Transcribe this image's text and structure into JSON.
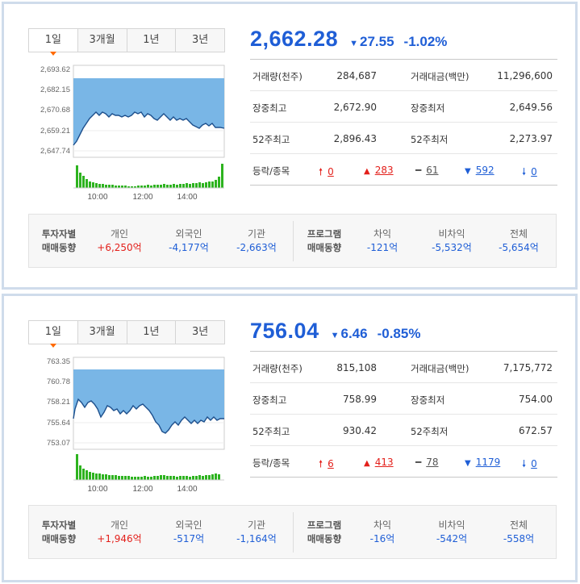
{
  "panels": [
    {
      "tabs": [
        "1일",
        "3개월",
        "1년",
        "3년"
      ],
      "chart": {
        "y_ticks": [
          "2,693.62",
          "2,682.15",
          "2,670.68",
          "2,659.21",
          "2,647.74"
        ],
        "x_ticks": [
          "10:00",
          "12:00",
          "14:00"
        ]
      },
      "price": "2,662.28",
      "change": "27.55",
      "change_symbol": "▼",
      "rate": "-1.02%",
      "stats": [
        {
          "k1": "거래량(천주)",
          "v1": "284,687",
          "k2": "거래대금(백만)",
          "v2": "11,296,600"
        },
        {
          "k1": "장중최고",
          "v1": "2,672.90",
          "k2": "장중최저",
          "v2": "2,649.56"
        },
        {
          "k1": "52주최고",
          "v1": "2,896.43",
          "k2": "52주최저",
          "v2": "2,273.97"
        }
      ],
      "updown": {
        "label": "등락/종목",
        "upper_limit": "0",
        "rise": "283",
        "flat": "61",
        "fall": "592",
        "lower_limit": "0"
      },
      "investor_flow": {
        "head": "투자자별 매매동향",
        "items": [
          {
            "label": "개인",
            "value": "+6,250억",
            "color": "red"
          },
          {
            "label": "외국인",
            "value": "-4,177억",
            "color": "blue"
          },
          {
            "label": "기관",
            "value": "-2,663억",
            "color": "blue"
          }
        ]
      },
      "program_flow": {
        "head": "프로그램 매매동향",
        "items": [
          {
            "label": "차익",
            "value": "-121억",
            "color": "blue"
          },
          {
            "label": "비차익",
            "value": "-5,532억",
            "color": "blue"
          },
          {
            "label": "전체",
            "value": "-5,654억",
            "color": "blue"
          }
        ]
      }
    },
    {
      "tabs": [
        "1일",
        "3개월",
        "1년",
        "3년"
      ],
      "chart": {
        "y_ticks": [
          "763.35",
          "760.78",
          "758.21",
          "755.64",
          "753.07"
        ],
        "x_ticks": [
          "10:00",
          "12:00",
          "14:00"
        ]
      },
      "price": "756.04",
      "change": "6.46",
      "change_symbol": "▼",
      "rate": "-0.85%",
      "stats": [
        {
          "k1": "거래량(천주)",
          "v1": "815,108",
          "k2": "거래대금(백만)",
          "v2": "7,175,772"
        },
        {
          "k1": "장중최고",
          "v1": "758.99",
          "k2": "장중최저",
          "v2": "754.00"
        },
        {
          "k1": "52주최고",
          "v1": "930.42",
          "k2": "52주최저",
          "v2": "672.57"
        }
      ],
      "updown": {
        "label": "등락/종목",
        "upper_limit": "6",
        "rise": "413",
        "flat": "78",
        "fall": "1179",
        "lower_limit": "0"
      },
      "investor_flow": {
        "head": "투자자별 매매동향",
        "items": [
          {
            "label": "개인",
            "value": "+1,946억",
            "color": "red"
          },
          {
            "label": "외국인",
            "value": "-517억",
            "color": "blue"
          },
          {
            "label": "기관",
            "value": "-1,164억",
            "color": "blue"
          }
        ]
      },
      "program_flow": {
        "head": "프로그램 매매동향",
        "items": [
          {
            "label": "차익",
            "value": "-16억",
            "color": "blue"
          },
          {
            "label": "비차익",
            "value": "-542억",
            "color": "blue"
          },
          {
            "label": "전체",
            "value": "-558억",
            "color": "blue"
          }
        ]
      }
    }
  ],
  "icons": {
    "upper_limit": "arrow-up-icon",
    "rise": "triangle-up-icon",
    "flat": "dash-icon",
    "fall": "triangle-down-icon",
    "lower_limit": "arrow-down-icon"
  },
  "colors": {
    "up": "#e3201b",
    "down": "#1f5ed6",
    "area_fill": "#6fb0e3",
    "volume_bar": "#2db31f",
    "panel_border": "#cfdceb"
  }
}
